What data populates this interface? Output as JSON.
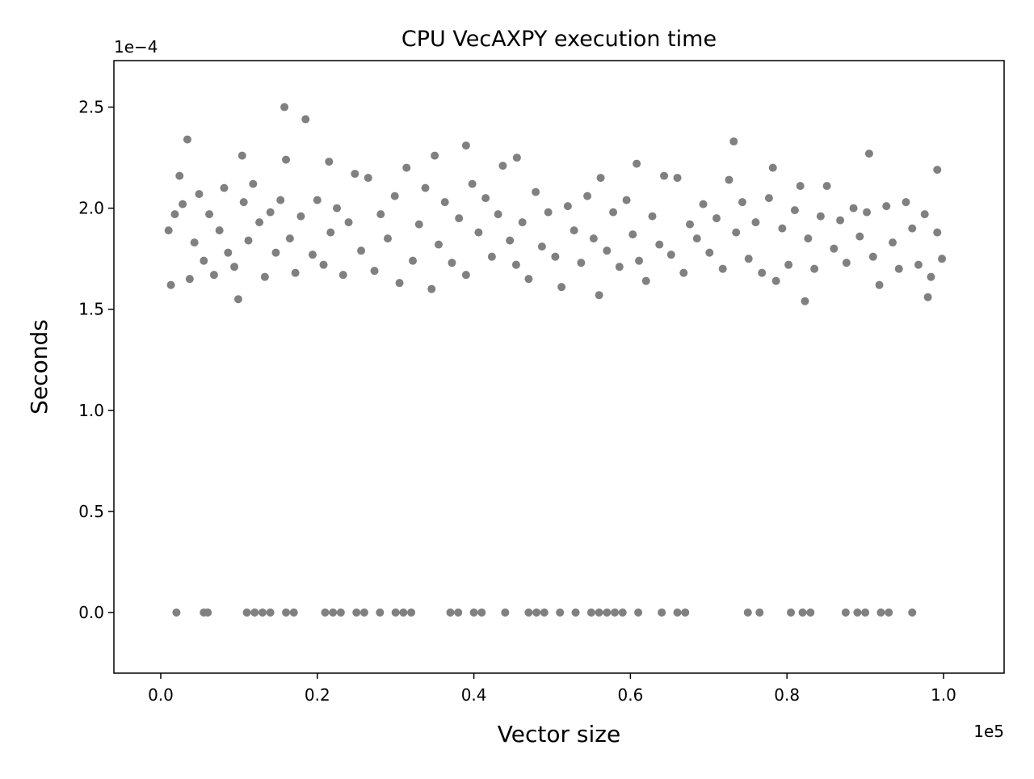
{
  "chart_data": {
    "type": "scatter",
    "title": "CPU VecAXPY execution time",
    "x_label": "Vector size",
    "y_label": "Seconds",
    "x_offset_label": "1e5",
    "y_offset_label": "1e−4",
    "xlim": [
      -5985,
      107740
    ],
    "ylim": [
      -3e-05,
      0.000273
    ],
    "xticks": [
      {
        "value": 0,
        "label": "0.0"
      },
      {
        "value": 20000,
        "label": "0.2"
      },
      {
        "value": 40000,
        "label": "0.4"
      },
      {
        "value": 60000,
        "label": "0.6"
      },
      {
        "value": 80000,
        "label": "0.8"
      },
      {
        "value": 100000,
        "label": "1.0"
      }
    ],
    "yticks": [
      {
        "value": 0,
        "label": "0.0"
      },
      {
        "value": 5e-05,
        "label": "0.5"
      },
      {
        "value": 0.0001,
        "label": "1.0"
      },
      {
        "value": 0.00015,
        "label": "1.5"
      },
      {
        "value": 0.0002,
        "label": "2.0"
      },
      {
        "value": 0.00025,
        "label": "2.5"
      }
    ],
    "series": [
      {
        "color": "#808080",
        "x": [
          1000,
          1300,
          1800,
          2400,
          2800,
          3700,
          4300,
          4900,
          5500,
          6200,
          6800,
          7500,
          8100,
          8600,
          9400,
          10600,
          11200,
          11800,
          12600,
          13300,
          14000,
          14700,
          15300,
          16500,
          17200,
          17900,
          19400,
          20000,
          20800,
          21700,
          22500,
          23300,
          24000,
          24800,
          25600,
          26500,
          27300,
          28100,
          29000,
          29900,
          30500,
          31400,
          32200,
          33000,
          33800,
          34600,
          35500,
          36300,
          37200,
          38100,
          39000,
          39800,
          40600,
          41500,
          42300,
          43100,
          43700,
          44600,
          45400,
          46200,
          47000,
          47900,
          48700,
          49500,
          50400,
          51200,
          52000,
          52800,
          53700,
          54500,
          55300,
          56200,
          57000,
          57800,
          58600,
          59500,
          60300,
          61100,
          62000,
          62800,
          63700,
          64300,
          65200,
          66000,
          66800,
          67600,
          68500,
          69300,
          70100,
          71000,
          71800,
          72600,
          73500,
          74300,
          75100,
          76000,
          76800,
          77700,
          78600,
          79400,
          80200,
          81000,
          81700,
          82700,
          83500,
          84300,
          85100,
          86000,
          86800,
          87600,
          88500,
          89300,
          90200,
          91000,
          91800,
          92700,
          93500,
          94300,
          95200,
          96000,
          96800,
          97600,
          98400,
          99200,
          99800,
          15800,
          18500,
          3400,
          73200,
          39000,
          90500,
          10400,
          35000,
          16000,
          45500,
          21500,
          60800,
          78200,
          99200,
          9900,
          82300,
          56000,
          98000,
          2000,
          5500,
          6000,
          11000,
          12000,
          13000,
          14000,
          16000,
          17000,
          21000,
          22000,
          23000,
          25000,
          26000,
          28000,
          30000,
          31000,
          32000,
          37000,
          38000,
          40000,
          41000,
          44000,
          47000,
          48000,
          49000,
          51000,
          53000,
          55000,
          56000,
          57000,
          58000,
          59000,
          61000,
          64000,
          66000,
          67000,
          75000,
          76500,
          80500,
          82000,
          83000,
          87500,
          89000,
          90000,
          92000,
          93000,
          96000
        ],
        "values": [
          0.000189,
          0.000162,
          0.000197,
          0.000216,
          0.000202,
          0.000165,
          0.000183,
          0.000207,
          0.000174,
          0.000197,
          0.000167,
          0.000189,
          0.00021,
          0.000178,
          0.000171,
          0.000203,
          0.000184,
          0.000212,
          0.000193,
          0.000166,
          0.000198,
          0.000178,
          0.000204,
          0.000185,
          0.000168,
          0.000196,
          0.000177,
          0.000204,
          0.000172,
          0.000188,
          0.0002,
          0.000167,
          0.000193,
          0.000217,
          0.000179,
          0.000215,
          0.000169,
          0.000197,
          0.000185,
          0.000206,
          0.000163,
          0.00022,
          0.000174,
          0.000192,
          0.00021,
          0.00016,
          0.000182,
          0.000203,
          0.000173,
          0.000195,
          0.000167,
          0.000212,
          0.000188,
          0.000205,
          0.000176,
          0.000197,
          0.000221,
          0.000184,
          0.000172,
          0.000193,
          0.000165,
          0.000208,
          0.000181,
          0.000198,
          0.000176,
          0.000161,
          0.000201,
          0.000189,
          0.000173,
          0.000206,
          0.000185,
          0.000215,
          0.000179,
          0.000198,
          0.000171,
          0.000204,
          0.000187,
          0.000174,
          0.000164,
          0.000196,
          0.000182,
          0.000216,
          0.000177,
          0.000215,
          0.000168,
          0.000192,
          0.000185,
          0.000202,
          0.000178,
          0.000195,
          0.00017,
          0.000214,
          0.000188,
          0.000203,
          0.000175,
          0.000193,
          0.000168,
          0.000205,
          0.000164,
          0.00019,
          0.000172,
          0.000199,
          0.000211,
          0.000185,
          0.00017,
          0.000196,
          0.000211,
          0.00018,
          0.000194,
          0.000173,
          0.0002,
          0.000186,
          0.000198,
          0.000176,
          0.000162,
          0.000201,
          0.000183,
          0.00017,
          0.000203,
          0.00019,
          0.000172,
          0.000197,
          0.000166,
          0.000188,
          0.000175,
          0.00025,
          0.000244,
          0.000234,
          0.000233,
          0.000231,
          0.000227,
          0.000226,
          0.000226,
          0.000224,
          0.000225,
          0.000223,
          0.000222,
          0.00022,
          0.000219,
          0.000155,
          0.000154,
          0.000157,
          0.000156,
          0,
          0,
          0,
          0,
          0,
          0,
          0,
          0,
          0,
          0,
          0,
          0,
          0,
          0,
          0,
          0,
          0,
          0,
          0,
          0,
          0,
          0,
          0,
          0,
          0,
          0,
          0,
          0,
          0,
          0,
          0,
          0,
          0,
          0,
          0,
          0,
          0,
          0,
          0,
          0,
          0,
          0,
          0,
          0,
          0,
          0,
          0,
          0
        ]
      }
    ]
  }
}
